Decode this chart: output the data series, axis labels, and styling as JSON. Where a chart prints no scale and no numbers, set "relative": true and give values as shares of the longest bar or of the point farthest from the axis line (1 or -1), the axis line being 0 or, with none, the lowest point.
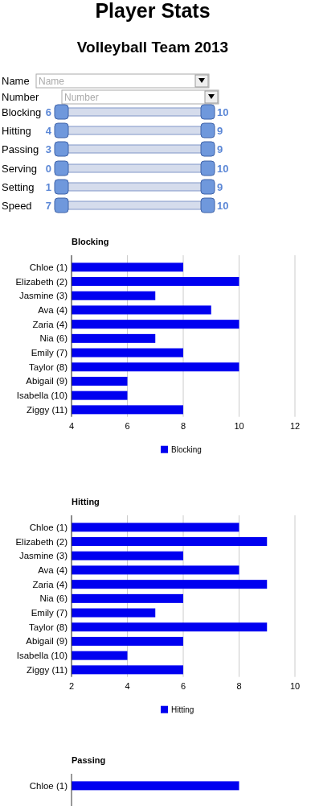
{
  "chart_data": [
    {
      "type": "other",
      "title": "Player Stats",
      "subtitle": "Volleyball Team 2013",
      "annotations": [
        "Name",
        "Name",
        "Number",
        "Number",
        "Blocking",
        "6",
        "10",
        "Hitting",
        "4",
        "9",
        "Passing",
        "3",
        "9",
        "Serving",
        "0",
        "10",
        "Setting",
        "1",
        "9",
        "Speed",
        "7",
        "10"
      ]
    },
    {
      "type": "bar",
      "orientation": "horizontal",
      "title": "Blocking",
      "categories": [
        "Chloe (1)",
        "Elizabeth (2)",
        "Jasmine (3)",
        "Ava (4)",
        "Zaria (4)",
        "Nia (6)",
        "Emily (7)",
        "Taylor (8)",
        "Abigail (9)",
        "Isabella (10)",
        "Ziggy (11)"
      ],
      "series": [
        {
          "name": "Blocking",
          "color": "#0000f0",
          "values": [
            8,
            10,
            7,
            9,
            10,
            7,
            8,
            10,
            6,
            6,
            8
          ]
        }
      ],
      "xlim": [
        4,
        12
      ],
      "xticks": [
        4,
        6,
        8,
        10,
        12
      ],
      "grid": "x",
      "legend": "bottom"
    },
    {
      "type": "bar",
      "orientation": "horizontal",
      "title": "Hitting",
      "categories": [
        "Chloe (1)",
        "Elizabeth (2)",
        "Jasmine (3)",
        "Ava (4)",
        "Zaria (4)",
        "Nia (6)",
        "Emily (7)",
        "Taylor (8)",
        "Abigail (9)",
        "Isabella (10)",
        "Ziggy (11)"
      ],
      "series": [
        {
          "name": "Hitting",
          "color": "#0000f0",
          "values": [
            8,
            9,
            6,
            8,
            9,
            6,
            5,
            9,
            6,
            4,
            6
          ]
        }
      ],
      "xlim": [
        2,
        10
      ],
      "xticks": [
        2,
        4,
        6,
        8,
        10
      ],
      "grid": "x",
      "legend": "bottom"
    },
    {
      "type": "bar",
      "orientation": "horizontal",
      "title": "Passing",
      "categories": [
        "Chloe (1)"
      ],
      "relative": true,
      "series": [
        {
          "color": "#0000f0",
          "values": [
            1
          ]
        }
      ]
    }
  ]
}
